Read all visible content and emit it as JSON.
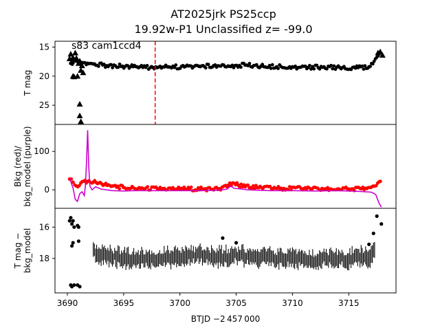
{
  "chart_data": {
    "type": "scatter",
    "title": [
      "AT2025jrk  PS25ccp",
      "19.92w-P1 Unclassified z= -99.0"
    ],
    "xlabel": "BTJD −2 457 000",
    "xlim": [
      3688.9,
      3719.2
    ],
    "x_ticks": [
      "3690",
      "3695",
      "3700",
      "3705",
      "3710",
      "3715"
    ],
    "x_tick_values": [
      3690,
      3695,
      3700,
      3705,
      3710,
      3715
    ],
    "panels": [
      {
        "id": "tmag",
        "ylabel": [
          "T mag"
        ],
        "ylim_top": 14.0,
        "ylim_bottom": 28.3,
        "inverted": true,
        "y_ticks": [
          "15",
          "20",
          "25"
        ],
        "y_tick_values": [
          15,
          20,
          25
        ],
        "annotation": "s83 cam1ccd4",
        "vline_x": 3697.8,
        "vline_color": "#ff0000",
        "series": [
          {
            "marker": "dot",
            "color": "#000000",
            "x": [
              3690.3,
              3690.7,
              3691.2,
              3692.4,
              3693.5,
              3694.9,
              3696.2,
              3697.6,
              3699.0,
              3700.4,
              3701.7,
              3703.0,
              3704.4,
              3705.8,
              3707.2,
              3708.6,
              3710.0,
              3711.4,
              3712.8,
              3714.2,
              3715.6,
              3716.8,
              3717.6
            ],
            "y": [
              17.8,
              17.4,
              18.0,
              17.9,
              18.2,
              18.3,
              18.4,
              18.5,
              18.4,
              18.4,
              18.3,
              18.2,
              18.3,
              18.1,
              18.3,
              18.4,
              18.4,
              18.5,
              18.4,
              18.5,
              18.6,
              18.4,
              16.5
            ],
            "jitter": 0.35
          },
          {
            "marker": "triangle",
            "color": "#000000",
            "x": [
              3690.2,
              3690.3,
              3690.4,
              3690.5,
              3690.6,
              3690.7,
              3690.8,
              3691.0,
              3691.1,
              3691.2,
              3691.3,
              3691.4,
              3691.1,
              3691.1,
              3691.2,
              3690.5,
              3690.6,
              3690.9,
              3717.6,
              3717.8,
              3718.0
            ],
            "y": [
              17.0,
              16.2,
              17.5,
              16.8,
              17.2,
              16.0,
              16.9,
              17.8,
              17.4,
              19.0,
              18.2,
              19.4,
              24.8,
              26.8,
              27.8,
              20.0,
              20.1,
              20.0,
              16.0,
              15.8,
              16.4
            ],
            "jitter": 0.0
          }
        ]
      },
      {
        "id": "bkg",
        "ylabel": [
          "Bkg (red)/",
          "bkg_model (purple)"
        ],
        "ylim": [
          -48,
          170
        ],
        "y_ticks": [
          "0",
          "100"
        ],
        "y_tick_values": [
          0,
          100
        ],
        "series": [
          {
            "name": "",
            "marker": "dot",
            "color": "#ff0000",
            "x": [
              3690.2,
              3690.5,
              3690.8,
              3691.2,
              3691.8,
              3692.3,
              3692.8,
              3693.3,
              3694.0,
              3695.0,
              3696.5,
              3698.0,
              3700.0,
              3702.0,
              3703.5,
              3704.3,
              3704.7,
              3705.2,
              3705.8,
              3707.0,
              3709.0,
              3711.0,
              3713.0,
              3715.0,
              3716.5,
              3717.2,
              3717.8
            ],
            "y": [
              28,
              20,
              10,
              18,
              22,
              20,
              18,
              14,
              10,
              6,
              4,
              3,
              3,
              2,
              3,
              12,
              18,
              12,
              8,
              6,
              4,
              3,
              2,
              2,
              4,
              10,
              22
            ],
            "jitter": 5
          },
          {
            "name": "",
            "marker": "line",
            "color": "#cc00cc",
            "x": [
              3690.2,
              3690.5,
              3690.7,
              3690.9,
              3691.1,
              3691.3,
              3691.5,
              3691.6,
              3691.7,
              3691.8,
              3691.9,
              3692.0,
              3692.2,
              3692.5,
              3693.0,
              3694.0,
              3695.0,
              3696.0,
              3698.0,
              3700.0,
              3702.0,
              3703.5,
              3704.2,
              3704.5,
              3704.8,
              3705.2,
              3706.0,
              3708.0,
              3710.0,
              3712.0,
              3714.0,
              3716.0,
              3717.0,
              3717.4,
              3717.7,
              3717.9
            ],
            "y": [
              30,
              5,
              -25,
              -30,
              -10,
              -5,
              -15,
              10,
              70,
              155,
              60,
              10,
              0,
              8,
              2,
              -2,
              -3,
              -2,
              -2,
              -2,
              -2,
              -1,
              2,
              10,
              4,
              3,
              0,
              -2,
              -2,
              -3,
              -2,
              -4,
              -6,
              -12,
              -35,
              -45
            ]
          }
        ]
      },
      {
        "id": "diff",
        "ylabel": [
          "T mag −",
          "bkg_model"
        ],
        "ylim_top": 14.8,
        "ylim_bottom": 20.2,
        "inverted": true,
        "y_ticks": [
          "16",
          "18"
        ],
        "y_tick_values": [
          16,
          18
        ],
        "series": [
          {
            "marker": "errbar",
            "color": "#000000",
            "x": [
              3692.3,
              3692.8,
              3693.4,
              3694.0,
              3694.6,
              3695.2,
              3695.8,
              3696.4,
              3697.0,
              3697.6,
              3698.2,
              3698.8,
              3699.4,
              3700.0,
              3700.6,
              3701.2,
              3701.8,
              3702.4,
              3703.0,
              3703.6,
              3704.3,
              3704.8,
              3705.4,
              3706.0,
              3706.6,
              3707.2,
              3707.8,
              3708.4,
              3709.0,
              3709.6,
              3710.2,
              3710.8,
              3711.4,
              3712.0,
              3712.6,
              3713.2,
              3713.8,
              3714.4,
              3715.0,
              3715.6,
              3716.2,
              3716.8,
              3717.3
            ],
            "y": [
              17.6,
              17.7,
              17.8,
              17.9,
              17.9,
              18.0,
              18.0,
              18.0,
              18.0,
              18.1,
              18.0,
              17.9,
              17.9,
              17.9,
              17.9,
              17.8,
              17.8,
              17.8,
              17.9,
              17.9,
              17.9,
              17.8,
              17.8,
              17.8,
              17.9,
              17.9,
              17.9,
              18.0,
              18.0,
              18.0,
              18.0,
              18.0,
              18.0,
              18.1,
              18.0,
              18.0,
              18.1,
              18.0,
              18.0,
              18.0,
              17.9,
              17.9,
              17.6
            ]
          },
          {
            "marker": "dot",
            "color": "#000000",
            "x": [
              3690.2,
              3690.3,
              3690.4,
              3690.5,
              3690.6,
              3690.4,
              3690.5,
              3690.9,
              3691.0,
              3691.0,
              3690.3,
              3690.4,
              3690.6,
              3690.9,
              3691.1,
              3703.8,
              3705.0,
              3716.8,
              3717.2,
              3717.5,
              3717.9
            ],
            "y": [
              15.6,
              15.4,
              15.8,
              15.6,
              16.0,
              17.2,
              17.0,
              15.9,
              16.0,
              16.9,
              19.7,
              19.8,
              19.7,
              19.7,
              19.8,
              16.7,
              17.0,
              17.1,
              16.4,
              15.3,
              15.8
            ]
          }
        ]
      }
    ]
  }
}
